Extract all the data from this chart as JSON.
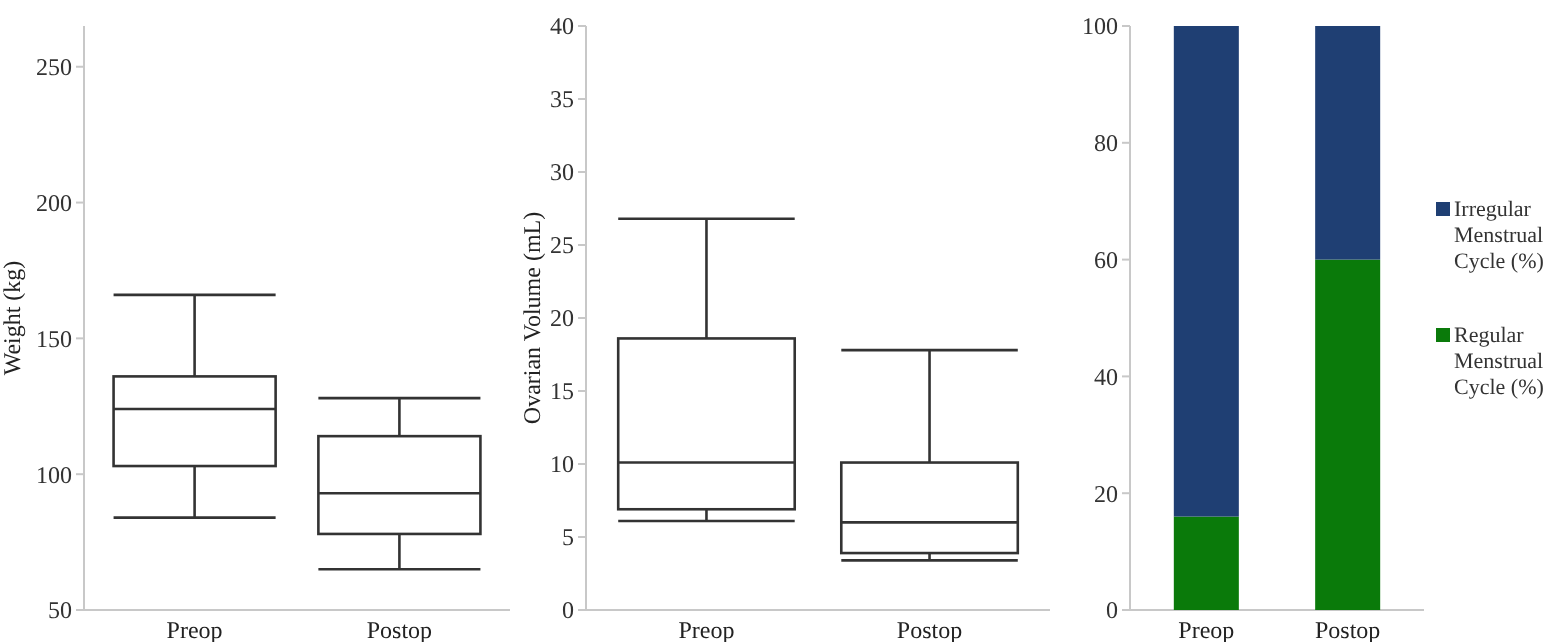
{
  "chart_data": [
    {
      "type": "box",
      "ylabel": "Weight (kg)",
      "categories": [
        "Preop",
        "Postop"
      ],
      "ylim": [
        50,
        265
      ],
      "yticks": [
        50,
        100,
        150,
        200,
        250
      ],
      "boxes": [
        {
          "low": 84,
          "q1": 103,
          "median": 124,
          "q3": 136,
          "high": 166
        },
        {
          "low": 65,
          "q1": 78,
          "median": 93,
          "q3": 114,
          "high": 128
        }
      ]
    },
    {
      "type": "box",
      "ylabel": "Ovarian Volume (mL)",
      "categories": [
        "Preop",
        "Postop"
      ],
      "ylim": [
        0,
        40
      ],
      "yticks": [
        0,
        5,
        10,
        15,
        20,
        25,
        30,
        35,
        40
      ],
      "boxes": [
        {
          "low": 6.1,
          "q1": 6.9,
          "median": 10.1,
          "q3": 18.6,
          "high": 26.8
        },
        {
          "low": 3.4,
          "q1": 3.9,
          "median": 6.0,
          "q3": 10.1,
          "high": 17.8
        }
      ]
    },
    {
      "type": "bar",
      "stacked": true,
      "categories": [
        "Preop",
        "Postop"
      ],
      "ylim": [
        0,
        100
      ],
      "yticks": [
        0,
        20,
        40,
        60,
        80,
        100
      ],
      "legend": "right",
      "series": [
        {
          "name": "Regular Menstrual Cycle (%)",
          "color": "#0a7a0a",
          "values": [
            16,
            60
          ]
        },
        {
          "name": "Irregular Menstrual Cycle (%)",
          "color": "#1f3f73",
          "values": [
            84,
            40
          ]
        }
      ]
    }
  ]
}
